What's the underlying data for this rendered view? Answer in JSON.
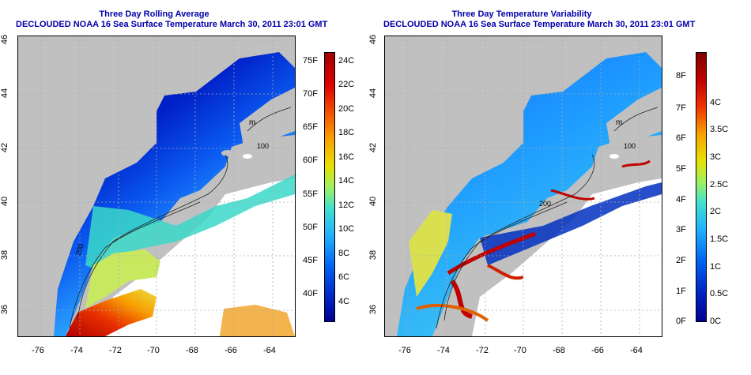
{
  "left_panel": {
    "title_line1": "Three Day Rolling Average",
    "title_line2": "DECLOUDED NOAA 16 Sea Surface Temperature March 30, 2011 23:01 GMT",
    "lon_ticks": [
      "-76",
      "-74",
      "-72",
      "-70",
      "-68",
      "-66",
      "-64"
    ],
    "lat_ticks": [
      "46",
      "44",
      "42",
      "40",
      "38",
      "36"
    ],
    "colorbar": {
      "f_labels": [
        "75F",
        "70F",
        "65F",
        "60F",
        "55F",
        "50F",
        "45F",
        "40F"
      ],
      "c_labels": [
        "24C",
        "22C",
        "20C",
        "18C",
        "16C",
        "14C",
        "12C",
        "10C",
        "8C",
        "6C",
        "4C"
      ]
    }
  },
  "right_panel": {
    "title_line1": "Three Day Temperature Variability",
    "title_line2": "DECLOUDED NOAA 16 Sea Surface Temperature March 30, 2011 23:01 GMT",
    "lon_ticks": [
      "-76",
      "-74",
      "-72",
      "-70",
      "-68",
      "-66",
      "-64"
    ],
    "lat_ticks": [
      "46",
      "44",
      "42",
      "40",
      "38",
      "36"
    ],
    "colorbar": {
      "f_labels": [
        "8F",
        "7F",
        "6F",
        "5F",
        "4F",
        "3F",
        "2F",
        "1F",
        "0F"
      ],
      "c_labels": [
        "4C",
        "3.5C",
        "3C",
        "2.5C",
        "2C",
        "1.5C",
        "1C",
        "0.5C",
        "0C"
      ]
    }
  },
  "map_labels": {
    "left_200": "200",
    "left_100": "100",
    "left_m": "m",
    "right_200": "200",
    "right_100": "100",
    "right_m": "m"
  },
  "colors": {
    "title": "#0000aa",
    "land": "#c0c0c0",
    "cloud": "#ffffff"
  }
}
